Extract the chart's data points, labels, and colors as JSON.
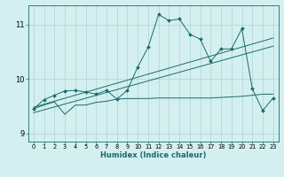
{
  "xlabel": "Humidex (Indice chaleur)",
  "bg_color": "#d4efef",
  "grid_color": "#aed4d4",
  "line_color": "#1a6b6b",
  "xlim": [
    -0.5,
    23.5
  ],
  "ylim": [
    8.85,
    11.35
  ],
  "xticks": [
    0,
    1,
    2,
    3,
    4,
    5,
    6,
    7,
    8,
    9,
    10,
    11,
    12,
    13,
    14,
    15,
    16,
    17,
    18,
    19,
    20,
    21,
    22,
    23
  ],
  "yticks": [
    9,
    10,
    11
  ],
  "series1_x": [
    0,
    1,
    2,
    3,
    4,
    5,
    6,
    7,
    8,
    9,
    10,
    11,
    12,
    13,
    14,
    15,
    16,
    17,
    18,
    19,
    20,
    21,
    22,
    23
  ],
  "series1_y": [
    9.45,
    9.62,
    9.7,
    9.78,
    9.79,
    9.76,
    9.72,
    9.79,
    9.63,
    9.79,
    10.22,
    10.58,
    11.18,
    11.07,
    11.1,
    10.82,
    10.73,
    10.32,
    10.55,
    10.55,
    10.92,
    9.82,
    9.42,
    9.65
  ],
  "series2_x": [
    0,
    23
  ],
  "series2_y": [
    9.48,
    10.75
  ],
  "series3_x": [
    0,
    23
  ],
  "series3_y": [
    9.38,
    10.6
  ],
  "series4_x": [
    0,
    1,
    2,
    3,
    4,
    5,
    6,
    7,
    8,
    9,
    10,
    11,
    12,
    13,
    14,
    15,
    16,
    17,
    18,
    19,
    20,
    21,
    22,
    23
  ],
  "series4_y": [
    9.45,
    9.52,
    9.58,
    9.35,
    9.52,
    9.52,
    9.57,
    9.59,
    9.63,
    9.64,
    9.64,
    9.64,
    9.65,
    9.65,
    9.65,
    9.65,
    9.65,
    9.65,
    9.66,
    9.67,
    9.68,
    9.7,
    9.72,
    9.72
  ]
}
